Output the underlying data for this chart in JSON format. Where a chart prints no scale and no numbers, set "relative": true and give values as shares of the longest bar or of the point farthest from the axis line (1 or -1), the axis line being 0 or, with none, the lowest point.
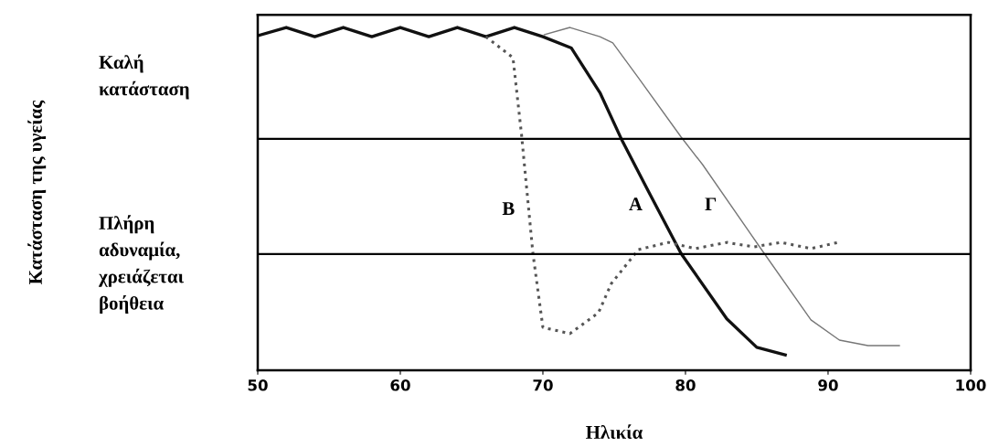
{
  "chart_data": {
    "type": "line",
    "relative": true,
    "xlabel": "Ηλικία",
    "xlim": [
      50,
      100
    ],
    "xticks": [
      50,
      60,
      70,
      80,
      90,
      100
    ],
    "grid": false,
    "marker": "none",
    "series": [
      {
        "name": "A",
        "color": "#111111",
        "line_style": "solid",
        "x": [
          50,
          52,
          54,
          56,
          58,
          60,
          62,
          64,
          66,
          68,
          70,
          72,
          74,
          75.5,
          77.3,
          79.7,
          82.9,
          85,
          87
        ],
        "values": [
          0.976,
          1,
          0.973,
          1,
          0.973,
          1,
          0.973,
          1,
          0.973,
          1,
          0.973,
          0.94,
          0.81,
          0.675,
          0.53,
          0.34,
          0.15,
          0.067,
          0.045
        ]
      },
      {
        "name": "B",
        "color": "#555555",
        "line_style": "dotted",
        "x": [
          66,
          67.9,
          68.5,
          69.3,
          70,
          71.9,
          73.9,
          74.8,
          76.7,
          78.8,
          80.7,
          82.9,
          84.8,
          86.7,
          88.8,
          90.7
        ],
        "values": [
          0.973,
          0.912,
          0.688,
          0.341,
          0.125,
          0.107,
          0.168,
          0.253,
          0.352,
          0.373,
          0.355,
          0.373,
          0.36,
          0.373,
          0.355,
          0.373
        ]
      },
      {
        "name": "Γ",
        "color": "#777777",
        "line_style": "solid",
        "x": [
          70.1,
          71.9,
          74,
          74.9,
          76.7,
          79.7,
          81.2,
          85.2,
          88.8,
          90.8,
          92.8,
          95
        ],
        "values": [
          0.979,
          1,
          0.973,
          0.955,
          0.853,
          0.68,
          0.6,
          0.36,
          0.147,
          0.088,
          0.072,
          0.072
        ]
      }
    ],
    "ref_lines": [
      {
        "axis": "y",
        "value": 0.675,
        "color": "#000000"
      },
      {
        "axis": "y",
        "value": 0.339,
        "color": "#000000"
      }
    ],
    "annotations": [
      "Καλή κατάσταση",
      "Πλήρη αδυναμία, χρειάζεται βοήθεια",
      "Κατάσταση της υγείας"
    ]
  }
}
